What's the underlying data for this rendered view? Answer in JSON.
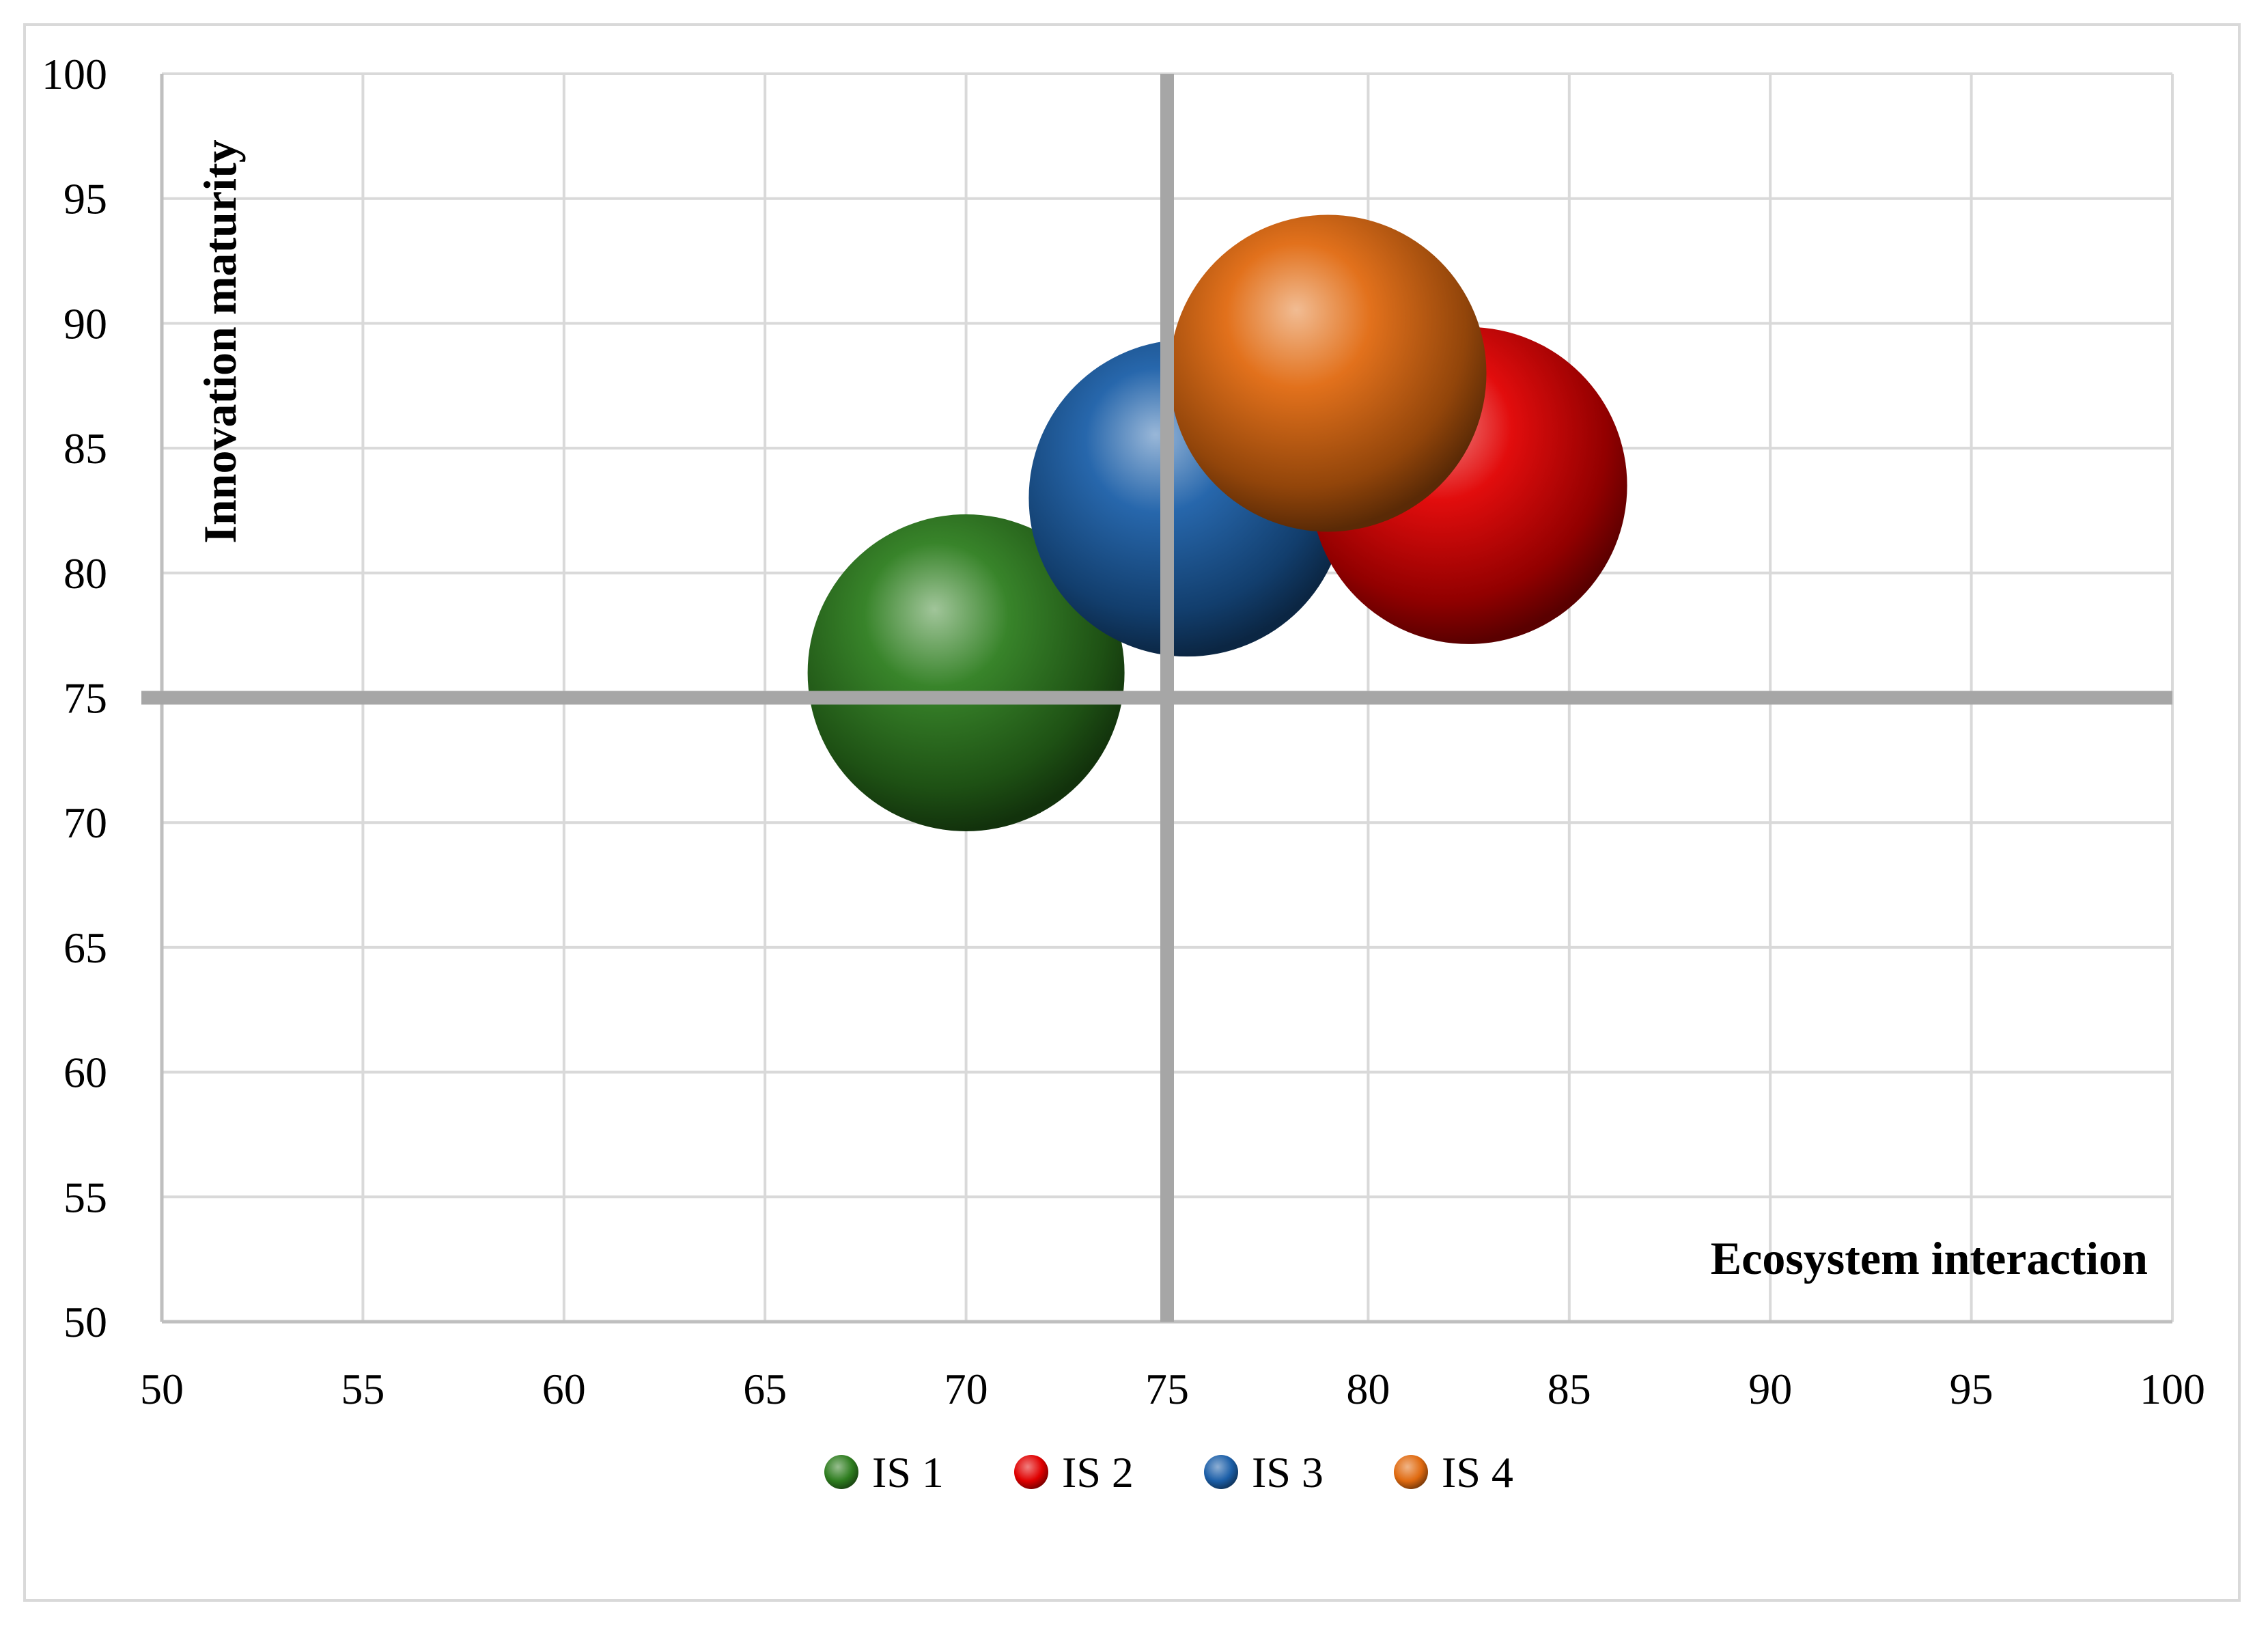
{
  "chart_data": {
    "type": "scatter",
    "subtype": "bubble",
    "title": "",
    "xlabel": "Ecosystem interaction",
    "ylabel": "Innovation maturity",
    "xlim": [
      50,
      100
    ],
    "ylim": [
      50,
      100
    ],
    "x_ticks": [
      "50",
      "55",
      "60",
      "65",
      "70",
      "75",
      "80",
      "85",
      "90",
      "95",
      "100"
    ],
    "y_ticks": [
      "50",
      "55",
      "60",
      "65",
      "70",
      "75",
      "80",
      "85",
      "90",
      "95",
      "100"
    ],
    "grid": true,
    "quadrant_lines": {
      "x": 75,
      "y": 75
    },
    "legend_position": "bottom",
    "series": [
      {
        "name": "IS 1",
        "x": 70,
        "y": 76,
        "color": "#2e7d1f"
      },
      {
        "name": "IS 2",
        "x": 82.5,
        "y": 83.5,
        "color": "#e00000"
      },
      {
        "name": "IS 3",
        "x": 75.5,
        "y": 83,
        "color": "#1c5fa8"
      },
      {
        "name": "IS 4",
        "x": 79,
        "y": 88,
        "color": "#e06a10"
      }
    ]
  }
}
